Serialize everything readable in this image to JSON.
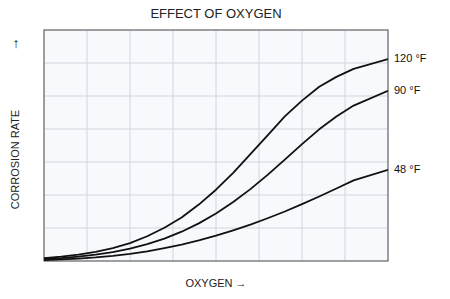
{
  "chart_data": {
    "type": "line",
    "title": "EFFECT OF OXYGEN",
    "x_label": "OXYGEN →",
    "y_label": "CORROSION RATE",
    "annotations": [
      {
        "text": "↑"
      }
    ],
    "x": [
      0.0,
      0.05,
      0.1,
      0.15,
      0.2,
      0.25,
      0.3,
      0.35,
      0.4,
      0.45,
      0.5,
      0.55,
      0.6,
      0.65,
      0.7,
      0.75,
      0.8,
      0.85,
      0.9,
      1.0
    ],
    "series": [
      {
        "name": "120 °F",
        "color": "#111111",
        "values": [
          0.015,
          0.022,
          0.032,
          0.046,
          0.065,
          0.09,
          0.125,
          0.168,
          0.22,
          0.285,
          0.36,
          0.445,
          0.54,
          0.635,
          0.73,
          0.81,
          0.88,
          0.93,
          0.97,
          1.02
        ]
      },
      {
        "name": "90 °F",
        "color": "#111111",
        "values": [
          0.01,
          0.015,
          0.022,
          0.032,
          0.045,
          0.062,
          0.085,
          0.113,
          0.148,
          0.19,
          0.24,
          0.298,
          0.363,
          0.435,
          0.512,
          0.59,
          0.665,
          0.73,
          0.785,
          0.86
        ]
      },
      {
        "name": "48 °F",
        "color": "#111111",
        "values": [
          0.005,
          0.008,
          0.012,
          0.018,
          0.026,
          0.036,
          0.049,
          0.065,
          0.083,
          0.104,
          0.128,
          0.155,
          0.184,
          0.216,
          0.25,
          0.287,
          0.326,
          0.366,
          0.407,
          0.46
        ]
      }
    ],
    "xlim": [
      0,
      1
    ],
    "ylim": [
      0,
      1.1666666666666667
    ],
    "xticks": [
      0,
      0.125,
      0.25,
      0.375,
      0.5,
      0.625,
      0.75,
      0.875,
      1
    ],
    "yticks": [
      0,
      0.16666666666666666,
      0.3333333333333333,
      0.5,
      0.6666666666666666,
      0.8333333333333334,
      1,
      1.1666666666666667
    ],
    "tick_labels": false,
    "grid": true
  }
}
